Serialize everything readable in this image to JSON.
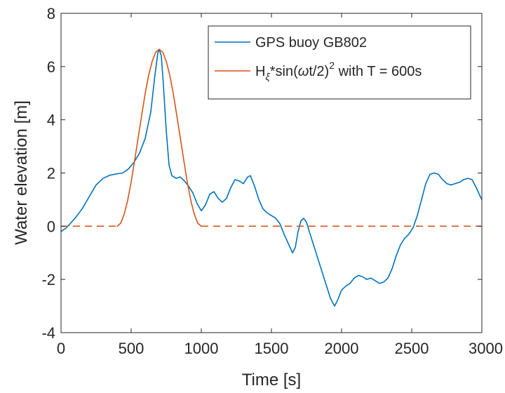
{
  "chart_data": {
    "type": "line",
    "title": "",
    "xlabel": "Time [s]",
    "ylabel": "Water elevation [m]",
    "xlim": [
      0,
      3000
    ],
    "ylim": [
      -4,
      8
    ],
    "xticks": [
      0,
      500,
      1000,
      1500,
      2000,
      2500,
      3000
    ],
    "yticks": [
      -4,
      -2,
      0,
      2,
      4,
      6,
      8
    ],
    "grid": false,
    "legend_position": "top-right",
    "series": [
      {
        "name": "GPS buoy GB802",
        "color": "#0072BD",
        "style": "solid",
        "points": [
          [
            0,
            -0.2
          ],
          [
            40,
            -0.05
          ],
          [
            100,
            0.3
          ],
          [
            150,
            0.65
          ],
          [
            200,
            1.1
          ],
          [
            250,
            1.55
          ],
          [
            300,
            1.8
          ],
          [
            350,
            1.92
          ],
          [
            400,
            1.97
          ],
          [
            440,
            2.0
          ],
          [
            480,
            2.15
          ],
          [
            520,
            2.4
          ],
          [
            560,
            2.75
          ],
          [
            600,
            3.3
          ],
          [
            640,
            4.3
          ],
          [
            670,
            5.7
          ],
          [
            690,
            6.5
          ],
          [
            700,
            6.65
          ],
          [
            715,
            6.4
          ],
          [
            730,
            5.3
          ],
          [
            750,
            3.6
          ],
          [
            770,
            2.3
          ],
          [
            790,
            1.9
          ],
          [
            820,
            1.8
          ],
          [
            850,
            1.85
          ],
          [
            880,
            1.7
          ],
          [
            910,
            1.5
          ],
          [
            940,
            1.25
          ],
          [
            970,
            0.85
          ],
          [
            1000,
            0.58
          ],
          [
            1030,
            0.8
          ],
          [
            1060,
            1.2
          ],
          [
            1090,
            1.3
          ],
          [
            1120,
            1.05
          ],
          [
            1150,
            0.9
          ],
          [
            1180,
            1.05
          ],
          [
            1210,
            1.45
          ],
          [
            1240,
            1.75
          ],
          [
            1270,
            1.7
          ],
          [
            1300,
            1.6
          ],
          [
            1330,
            1.85
          ],
          [
            1350,
            1.9
          ],
          [
            1380,
            1.5
          ],
          [
            1410,
            1.0
          ],
          [
            1440,
            0.65
          ],
          [
            1470,
            0.5
          ],
          [
            1500,
            0.4
          ],
          [
            1530,
            0.3
          ],
          [
            1560,
            0.1
          ],
          [
            1590,
            -0.3
          ],
          [
            1620,
            -0.65
          ],
          [
            1650,
            -1.0
          ],
          [
            1670,
            -0.8
          ],
          [
            1690,
            -0.2
          ],
          [
            1710,
            0.2
          ],
          [
            1730,
            0.3
          ],
          [
            1750,
            0.15
          ],
          [
            1770,
            -0.2
          ],
          [
            1800,
            -0.7
          ],
          [
            1830,
            -1.2
          ],
          [
            1860,
            -1.7
          ],
          [
            1890,
            -2.2
          ],
          [
            1920,
            -2.7
          ],
          [
            1950,
            -3.0
          ],
          [
            1970,
            -2.8
          ],
          [
            2000,
            -2.4
          ],
          [
            2030,
            -2.25
          ],
          [
            2060,
            -2.15
          ],
          [
            2090,
            -1.95
          ],
          [
            2120,
            -1.85
          ],
          [
            2150,
            -1.9
          ],
          [
            2180,
            -2.0
          ],
          [
            2210,
            -1.95
          ],
          [
            2240,
            -2.05
          ],
          [
            2270,
            -2.15
          ],
          [
            2300,
            -2.1
          ],
          [
            2330,
            -1.95
          ],
          [
            2360,
            -1.6
          ],
          [
            2390,
            -1.1
          ],
          [
            2420,
            -0.7
          ],
          [
            2450,
            -0.45
          ],
          [
            2480,
            -0.3
          ],
          [
            2510,
            -0.05
          ],
          [
            2540,
            0.4
          ],
          [
            2570,
            1.0
          ],
          [
            2600,
            1.6
          ],
          [
            2630,
            1.95
          ],
          [
            2660,
            2.0
          ],
          [
            2690,
            1.95
          ],
          [
            2720,
            1.75
          ],
          [
            2750,
            1.6
          ],
          [
            2780,
            1.55
          ],
          [
            2810,
            1.6
          ],
          [
            2840,
            1.65
          ],
          [
            2870,
            1.75
          ],
          [
            2900,
            1.8
          ],
          [
            2930,
            1.75
          ],
          [
            2960,
            1.45
          ],
          [
            2990,
            1.1
          ],
          [
            3000,
            1.0
          ]
        ]
      },
      {
        "name": "H_ξ*sin(ωt/2)^2 with T = 600s",
        "color": "#D95319",
        "style": "solid",
        "function": {
          "amplitude": 6.65,
          "period": 600,
          "t_start": 400,
          "t_end": 1000
        },
        "points": [
          [
            400,
            0.0
          ],
          [
            425,
            0.11
          ],
          [
            450,
            0.45
          ],
          [
            475,
            0.97
          ],
          [
            500,
            1.66
          ],
          [
            525,
            2.48
          ],
          [
            550,
            3.33
          ],
          [
            575,
            4.17
          ],
          [
            600,
            4.99
          ],
          [
            625,
            5.68
          ],
          [
            650,
            6.2
          ],
          [
            675,
            6.54
          ],
          [
            700,
            6.65
          ],
          [
            725,
            6.54
          ],
          [
            750,
            6.2
          ],
          [
            775,
            5.68
          ],
          [
            800,
            4.99
          ],
          [
            825,
            4.17
          ],
          [
            850,
            3.33
          ],
          [
            875,
            2.48
          ],
          [
            900,
            1.66
          ],
          [
            925,
            0.97
          ],
          [
            950,
            0.45
          ],
          [
            975,
            0.11
          ],
          [
            1000,
            0.0
          ]
        ]
      },
      {
        "name": "",
        "color": "#D95319",
        "style": "dashed",
        "points": [
          [
            0,
            0
          ],
          [
            400,
            0
          ]
        ]
      },
      {
        "name": "",
        "color": "#D95319",
        "style": "dashed",
        "points": [
          [
            1000,
            0
          ],
          [
            3000,
            0
          ]
        ]
      }
    ],
    "legend": [
      {
        "series_index": 0,
        "text": "GPS buoy GB802"
      },
      {
        "series_index": 1,
        "text_parts": {
          "H": "H",
          "sub": "ξ",
          "mid": "*sin(",
          "omega": "ω",
          "t2": "t/2)",
          "sup": "2",
          "tail": " with T = 600s"
        }
      }
    ]
  }
}
